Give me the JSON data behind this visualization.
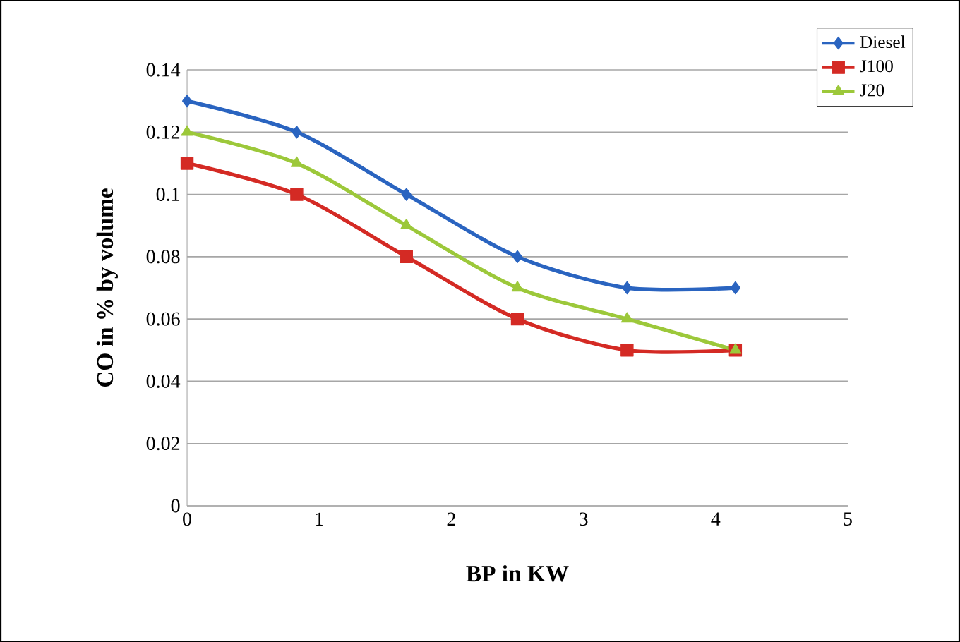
{
  "chart_data": {
    "type": "line",
    "xlabel": "BP in KW",
    "ylabel": "CO in % by volume",
    "x": [
      0,
      0.83,
      1.66,
      2.5,
      3.33,
      4.15
    ],
    "series": [
      {
        "name": "Diesel",
        "color": "#2a64c0",
        "marker": "diamond",
        "values": [
          0.13,
          0.12,
          0.1,
          0.08,
          0.07,
          0.07
        ]
      },
      {
        "name": "J100",
        "color": "#d42a24",
        "marker": "square",
        "values": [
          0.11,
          0.1,
          0.08,
          0.06,
          0.05,
          0.05
        ]
      },
      {
        "name": "J20",
        "color": "#9cc83a",
        "marker": "triangle",
        "values": [
          0.12,
          0.11,
          0.09,
          0.07,
          0.06,
          0.05
        ]
      }
    ],
    "xlim": [
      0,
      5
    ],
    "xticks": [
      0,
      1,
      2,
      3,
      4,
      5
    ],
    "ylim": [
      0,
      0.14
    ],
    "yticks": [
      0,
      0.02,
      0.04,
      0.06,
      0.08,
      0.1,
      0.12,
      0.14
    ],
    "grid": "y",
    "legend": "top right"
  }
}
